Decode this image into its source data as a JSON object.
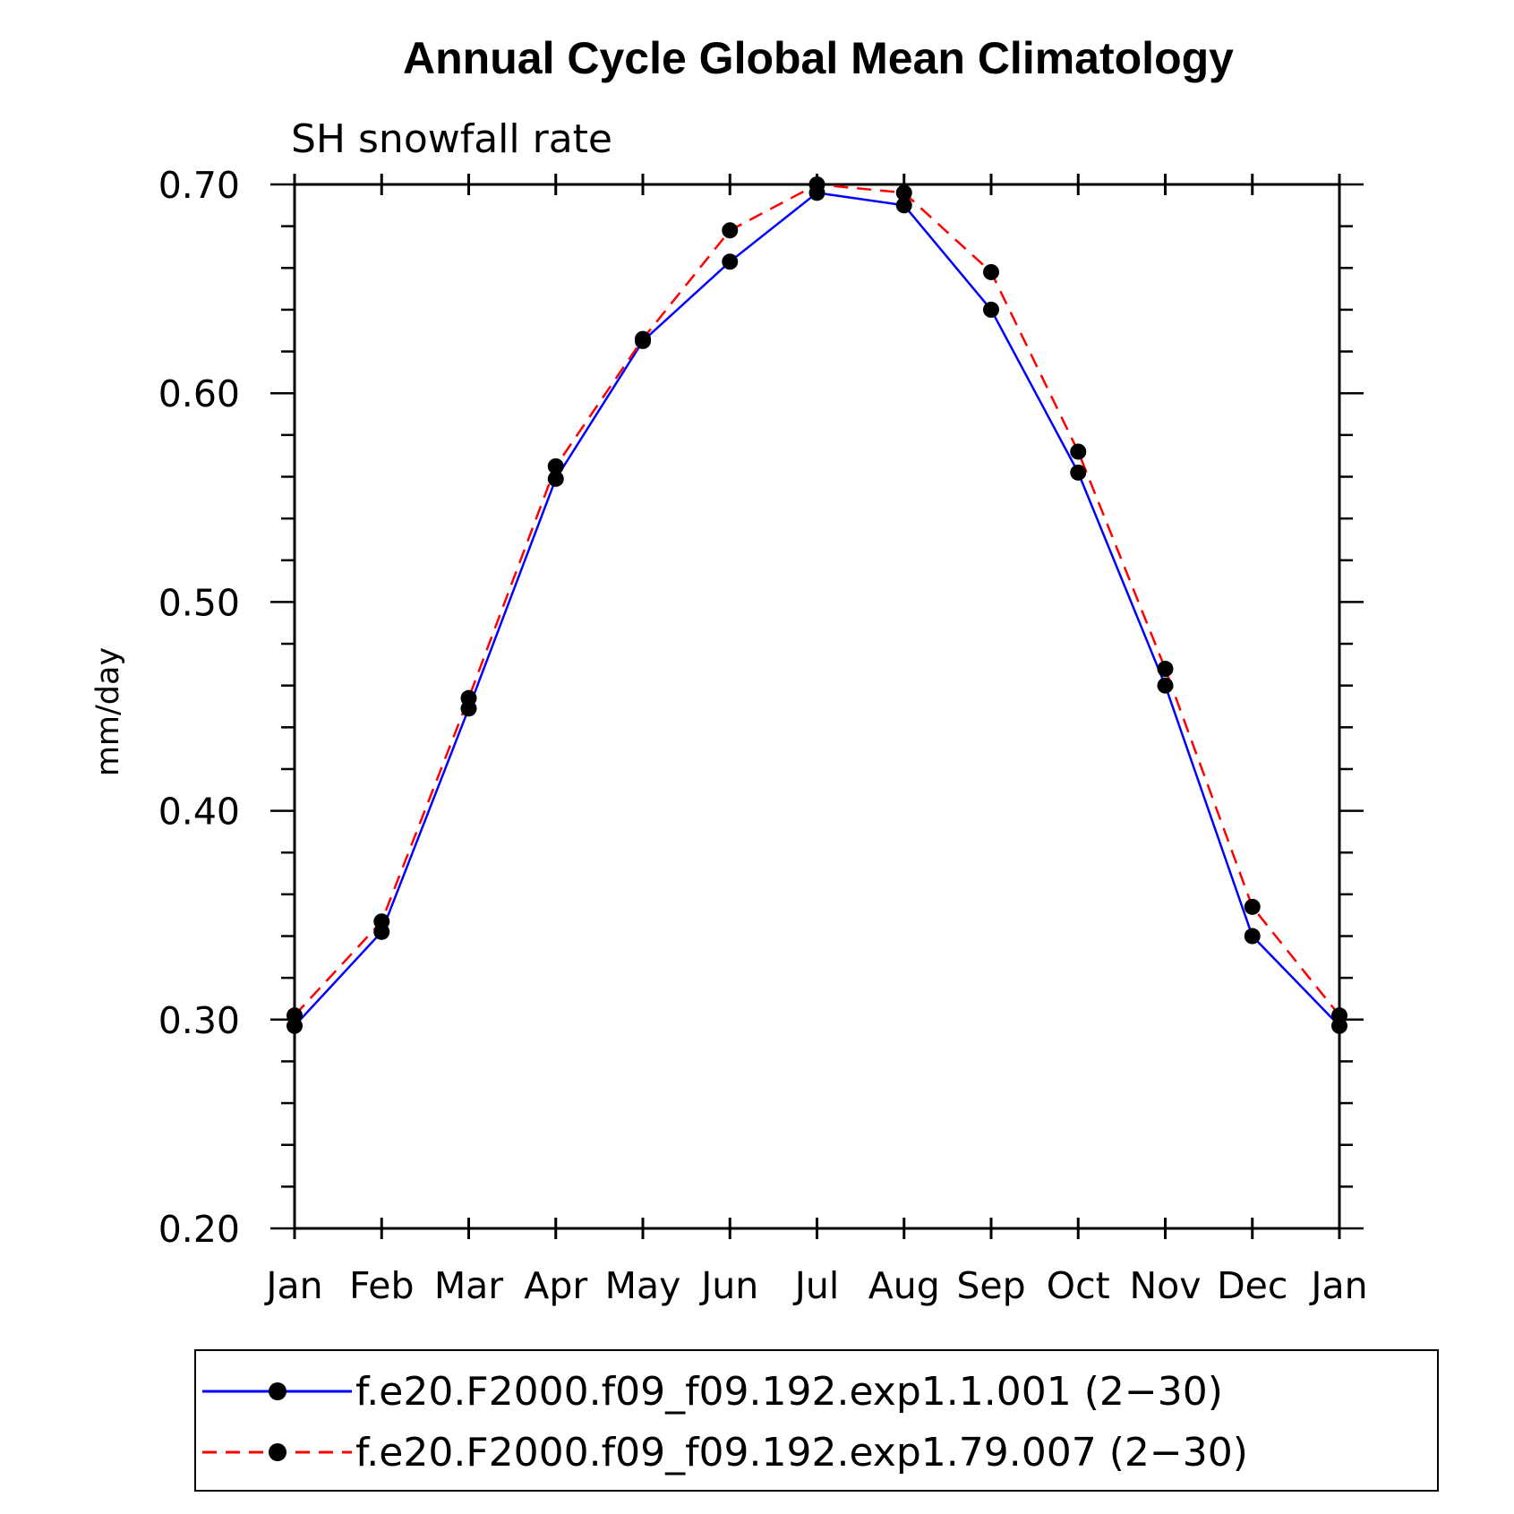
{
  "chart_data": {
    "type": "line",
    "title": "Annual Cycle Global Mean Climatology",
    "subtitle": "SH snowfall rate",
    "xlabel": "",
    "ylabel": "mm/day",
    "categories": [
      "Jan",
      "Feb",
      "Mar",
      "Apr",
      "May",
      "Jun",
      "Jul",
      "Aug",
      "Sep",
      "Oct",
      "Nov",
      "Dec",
      "Jan"
    ],
    "ylim": [
      0.2,
      0.7
    ],
    "yticks": [
      "0.20",
      "0.30",
      "0.40",
      "0.50",
      "0.60",
      "0.70"
    ],
    "grid": false,
    "legend_position": "bottom",
    "series": [
      {
        "name": "f.e20.F2000.f09_f09.192.exp1.1.001 (2−30)",
        "color": "#0000ff",
        "style": "solid",
        "values": [
          0.297,
          0.342,
          0.449,
          0.559,
          0.625,
          0.663,
          0.696,
          0.69,
          0.64,
          0.562,
          0.46,
          0.34,
          0.297
        ]
      },
      {
        "name": "f.e20.F2000.f09_f09.192.exp1.79.007 (2−30)",
        "color": "#ff0000",
        "style": "dashed",
        "values": [
          0.302,
          0.347,
          0.454,
          0.565,
          0.626,
          0.678,
          0.7,
          0.696,
          0.658,
          0.572,
          0.468,
          0.354,
          0.302
        ]
      }
    ]
  }
}
